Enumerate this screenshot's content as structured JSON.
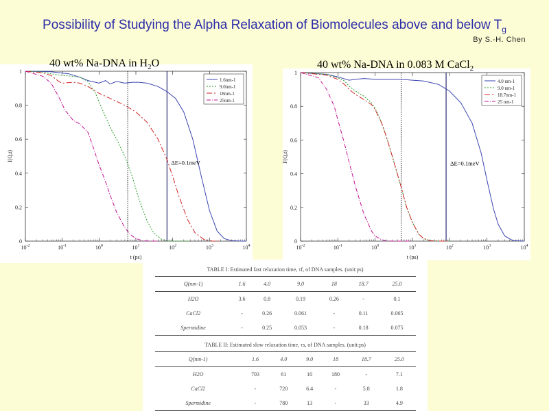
{
  "slide": {
    "title": "Possibility of Studying the Alpha Relaxation of Biomolecules above and below T",
    "title_sub": "g",
    "author": "By S.-H. Chen"
  },
  "panels": {
    "left": {
      "title": "40 wt% Na-DNA in H",
      "title_sub": "2",
      "title_tail": "O",
      "ylabel": "I(Q,t)",
      "xlabel": "t (ps)",
      "annotation": "ΔE=0.1meV"
    },
    "right": {
      "title": "40 wt% Na-DNA in 0.083 M CaCl",
      "title_sub": "2",
      "title_tail": "",
      "ylabel": "F(Q,t)",
      "xlabel": "t (ps)",
      "annotation": "ΔE=0.1meV"
    }
  },
  "chart_data": [
    {
      "type": "line",
      "xscale": "log",
      "xlim": [
        0.01,
        10000
      ],
      "ylim": [
        0,
        1
      ],
      "xticks": [
        0.01,
        0.1,
        1,
        10,
        100,
        1000,
        10000
      ],
      "xtick_labels": [
        "10-2",
        "10-1",
        "100",
        "101",
        "102",
        "103",
        "104"
      ],
      "yticks": [
        0,
        0.2,
        0.4,
        0.6,
        0.8,
        1
      ],
      "ytick_labels": [
        "0",
        "0.2",
        "0.4",
        "0.6",
        "0.8",
        "1"
      ],
      "xlabel": "t (ps)",
      "ylabel": "I(Q,t)",
      "legend_position": "top-right",
      "vlines": [
        6,
        70
      ],
      "series": [
        {
          "name": "1.6nm-1",
          "color": "#3a44b0",
          "dash": "",
          "x": [
            0.01,
            0.05,
            0.15,
            0.3,
            0.5,
            0.8,
            1.0,
            1.5,
            2,
            3,
            5,
            8,
            12,
            20,
            40,
            70,
            120,
            200,
            350,
            600,
            1000,
            1600,
            2500,
            4000,
            7000,
            10000
          ],
          "y": [
            1,
            0.997,
            0.985,
            0.965,
            0.945,
            0.935,
            0.93,
            0.945,
            0.925,
            0.94,
            0.93,
            0.935,
            0.935,
            0.93,
            0.91,
            0.88,
            0.84,
            0.76,
            0.6,
            0.38,
            0.18,
            0.06,
            0.015,
            0.003,
            0,
            0
          ]
        },
        {
          "name": "9.0nm-1",
          "color": "#2a9a2a",
          "dash": "2,2",
          "x": [
            0.01,
            0.03,
            0.05,
            0.1,
            0.2,
            0.3,
            0.5,
            0.8,
            1.2,
            2,
            3,
            5,
            8,
            12,
            20,
            30,
            50,
            80,
            150,
            300
          ],
          "y": [
            1,
            0.995,
            0.985,
            0.975,
            0.97,
            0.965,
            0.94,
            0.87,
            0.78,
            0.67,
            0.6,
            0.5,
            0.38,
            0.25,
            0.12,
            0.05,
            0.01,
            0,
            0,
            0
          ]
        },
        {
          "name": "18nm-1",
          "color": "#d02020",
          "dash": "8,3,2,3",
          "x": [
            0.01,
            0.03,
            0.05,
            0.08,
            0.1,
            0.2,
            0.3,
            0.5,
            1,
            2,
            5,
            10,
            20,
            40,
            70,
            100,
            150,
            250,
            400,
            700,
            1200,
            2000
          ],
          "y": [
            1,
            0.99,
            0.975,
            0.94,
            0.93,
            0.935,
            0.93,
            0.91,
            0.87,
            0.84,
            0.8,
            0.76,
            0.7,
            0.6,
            0.48,
            0.38,
            0.26,
            0.13,
            0.05,
            0.01,
            0,
            0
          ]
        },
        {
          "name": "25nm-1",
          "color": "#c01090",
          "dash": "6,2,1,2",
          "x": [
            0.01,
            0.03,
            0.05,
            0.08,
            0.12,
            0.2,
            0.3,
            0.5,
            0.7,
            1,
            1.5,
            2,
            3,
            5,
            7,
            10,
            15,
            25,
            40
          ],
          "y": [
            1,
            0.97,
            0.93,
            0.85,
            0.77,
            0.71,
            0.69,
            0.64,
            0.55,
            0.45,
            0.35,
            0.27,
            0.17,
            0.08,
            0.04,
            0.015,
            0.003,
            0,
            0
          ]
        }
      ]
    },
    {
      "type": "line",
      "xscale": "log",
      "xlim": [
        0.01,
        10000
      ],
      "ylim": [
        0,
        1
      ],
      "xticks": [
        0.01,
        0.1,
        1,
        10,
        100,
        1000,
        10000
      ],
      "xtick_labels": [
        "10-2",
        "10-1",
        "100",
        "101",
        "102",
        "103",
        "104"
      ],
      "yticks": [
        0,
        0.2,
        0.4,
        0.6,
        0.8,
        1
      ],
      "ytick_labels": [
        "0",
        "0.2",
        "0.4",
        "0.6",
        "0.8",
        "1"
      ],
      "xlabel": "t (ps)",
      "ylabel": "F(Q,t)",
      "legend_position": "top-right",
      "vlines": [
        5,
        80
      ],
      "series": [
        {
          "name": "4.0 nm-1",
          "color": "#3a44b0",
          "dash": "",
          "x": [
            0.01,
            0.05,
            0.1,
            0.2,
            0.3,
            0.5,
            1,
            2,
            5,
            10,
            20,
            50,
            100,
            200,
            400,
            700,
            1000,
            1500,
            2000,
            3000,
            5000,
            10000
          ],
          "y": [
            1,
            0.99,
            0.975,
            0.955,
            0.96,
            0.965,
            0.96,
            0.96,
            0.96,
            0.955,
            0.95,
            0.93,
            0.89,
            0.82,
            0.7,
            0.52,
            0.36,
            0.19,
            0.1,
            0.03,
            0.003,
            0
          ]
        },
        {
          "name": "9.0 nm-1",
          "color": "#2a9a2a",
          "dash": "2,2",
          "x": [
            0.01,
            0.05,
            0.1,
            0.15,
            0.2,
            0.3,
            0.5,
            0.8,
            1,
            1.5,
            2,
            3,
            5,
            7,
            10,
            15,
            20,
            30,
            50,
            100
          ],
          "y": [
            1,
            0.99,
            0.97,
            0.95,
            0.92,
            0.89,
            0.86,
            0.82,
            0.79,
            0.7,
            0.62,
            0.49,
            0.32,
            0.2,
            0.11,
            0.04,
            0.015,
            0.003,
            0,
            0
          ]
        },
        {
          "name": "18.7nm-1",
          "color": "#d02020",
          "dash": "8,3,2,3",
          "x": [
            0.01,
            0.05,
            0.1,
            0.15,
            0.2,
            0.3,
            0.5,
            0.8,
            1,
            1.5,
            2,
            3,
            5,
            7,
            10,
            15,
            20,
            30,
            50,
            100
          ],
          "y": [
            1,
            0.985,
            0.96,
            0.93,
            0.9,
            0.87,
            0.84,
            0.81,
            0.78,
            0.7,
            0.62,
            0.49,
            0.32,
            0.2,
            0.11,
            0.04,
            0.015,
            0.003,
            0,
            0
          ]
        },
        {
          "name": "25 nm-1",
          "color": "#c01090",
          "dash": "6,2,1,2",
          "x": [
            0.01,
            0.03,
            0.05,
            0.08,
            0.1,
            0.15,
            0.2,
            0.3,
            0.5,
            0.8,
            1,
            1.5,
            2,
            3,
            5,
            7,
            10
          ],
          "y": [
            1,
            0.97,
            0.9,
            0.8,
            0.72,
            0.58,
            0.47,
            0.32,
            0.16,
            0.06,
            0.03,
            0.008,
            0.002,
            0,
            0,
            0,
            0
          ]
        }
      ]
    },
    {
      "type": "table",
      "caption": "TABLE I: Estimated fast relaxation time, τf, of DNA samples. (unit:ps)",
      "columns": [
        "Q(nm-1)",
        "1.6",
        "4.0",
        "9.0",
        "18",
        "18.7",
        "25.0"
      ],
      "rows": [
        [
          "H2O",
          "3.6",
          "0.8",
          "0.19",
          "0.26",
          "-",
          "0.1"
        ],
        [
          "CaCl2",
          "-",
          "0.26",
          "0.061",
          "-",
          "0.11",
          "0.065"
        ],
        [
          "Spermidine",
          "-",
          "0.25",
          "0.053",
          "-",
          "0.18",
          "0.075"
        ]
      ]
    },
    {
      "type": "table",
      "caption": "TABLE II: Estimated slow relaxation time, τs, of DNA samples. (unit:ps)",
      "columns": [
        "Q(nm-1)",
        "1.6",
        "4.0",
        "9.0",
        "18",
        "18.7",
        "25.0"
      ],
      "rows": [
        [
          "H2O",
          "703",
          "61",
          "10",
          "180",
          "-",
          "7.1"
        ],
        [
          "CaCl2",
          "-",
          "720",
          "6.4",
          "-",
          "5.8",
          "1.8"
        ],
        [
          "Spermidine",
          "-",
          "780",
          "13",
          "-",
          "33",
          "4.9"
        ]
      ]
    }
  ]
}
